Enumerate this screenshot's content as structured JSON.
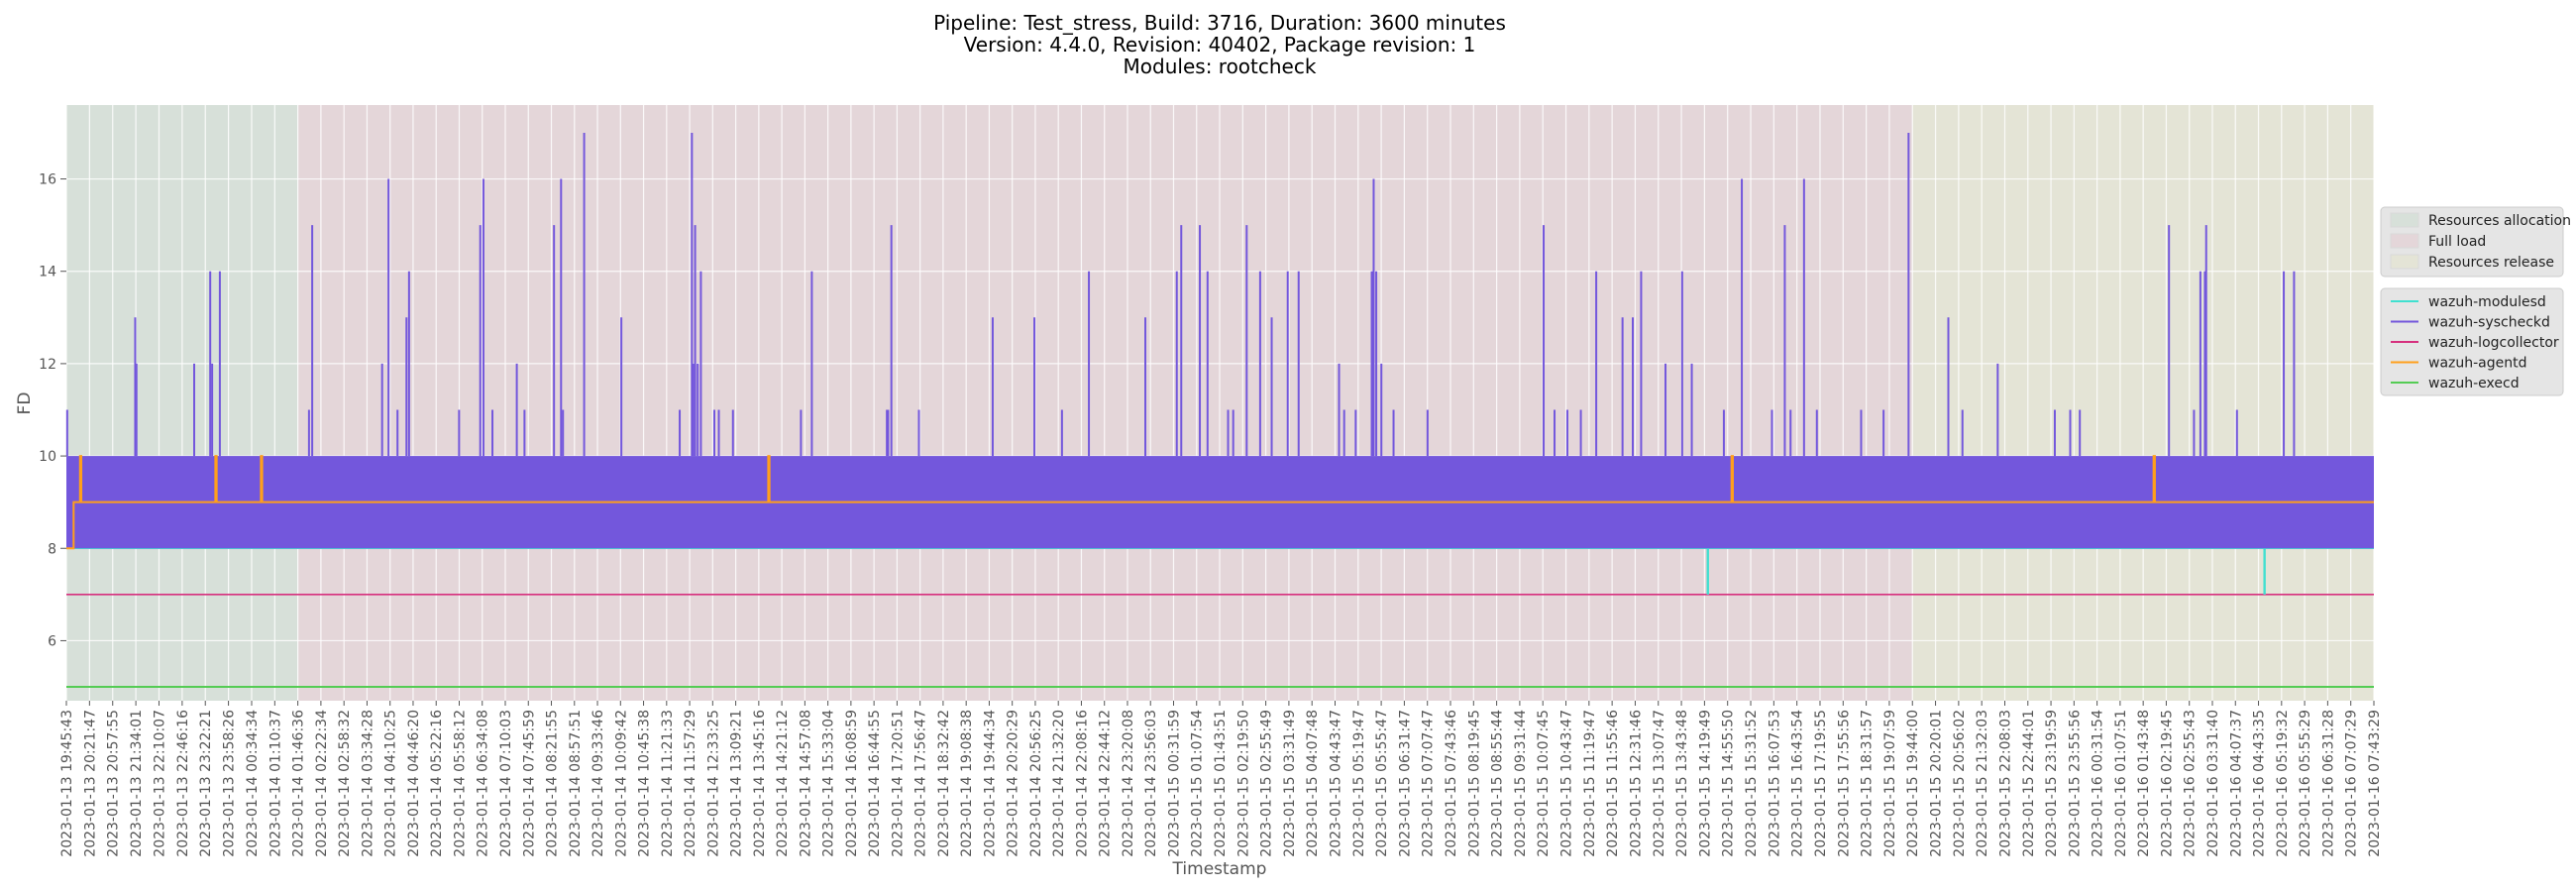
{
  "chart_data": {
    "type": "line",
    "title_lines": [
      "Pipeline: Test_stress, Build: 3716, Duration: 3600 minutes",
      "Version: 4.4.0, Revision: 40402, Package revision: 1",
      "Modules: rootcheck"
    ],
    "xlabel": "Timestamp",
    "ylabel": "FD",
    "ylim": [
      4.7,
      17.6
    ],
    "yticks": [
      6,
      8,
      10,
      12,
      14,
      16
    ],
    "grid": true,
    "legend_position": "right",
    "x_start": "2023-01-13 19:45:43",
    "x_end": "2023-01-16 07:43:29",
    "x_tick_labels": [
      "2023-01-13 19:45:43",
      "2023-01-13 20:21:47",
      "2023-01-13 20:57:55",
      "2023-01-13 21:34:01",
      "2023-01-13 22:10:07",
      "2023-01-13 22:46:16",
      "2023-01-13 23:22:21",
      "2023-01-13 23:58:26",
      "2023-01-14 00:34:34",
      "2023-01-14 01:10:37",
      "2023-01-14 01:46:36",
      "2023-01-14 02:22:34",
      "2023-01-14 02:58:32",
      "2023-01-14 03:34:28",
      "2023-01-14 04:10:25",
      "2023-01-14 04:46:20",
      "2023-01-14 05:22:16",
      "2023-01-14 05:58:12",
      "2023-01-14 06:34:08",
      "2023-01-14 07:10:03",
      "2023-01-14 07:45:59",
      "2023-01-14 08:21:55",
      "2023-01-14 08:57:51",
      "2023-01-14 09:33:46",
      "2023-01-14 10:09:42",
      "2023-01-14 10:45:38",
      "2023-01-14 11:21:33",
      "2023-01-14 11:57:29",
      "2023-01-14 12:33:25",
      "2023-01-14 13:09:21",
      "2023-01-14 13:45:16",
      "2023-01-14 14:21:12",
      "2023-01-14 14:57:08",
      "2023-01-14 15:33:04",
      "2023-01-14 16:08:59",
      "2023-01-14 16:44:55",
      "2023-01-14 17:20:51",
      "2023-01-14 17:56:47",
      "2023-01-14 18:32:42",
      "2023-01-14 19:08:38",
      "2023-01-14 19:44:34",
      "2023-01-14 20:20:29",
      "2023-01-14 20:56:25",
      "2023-01-14 21:32:20",
      "2023-01-14 22:08:16",
      "2023-01-14 22:44:12",
      "2023-01-14 23:20:08",
      "2023-01-14 23:56:03",
      "2023-01-15 00:31:59",
      "2023-01-15 01:07:54",
      "2023-01-15 01:43:51",
      "2023-01-15 02:19:50",
      "2023-01-15 02:55:49",
      "2023-01-15 03:31:49",
      "2023-01-15 04:07:48",
      "2023-01-15 04:43:47",
      "2023-01-15 05:19:47",
      "2023-01-15 05:55:47",
      "2023-01-15 06:31:47",
      "2023-01-15 07:07:47",
      "2023-01-15 07:43:46",
      "2023-01-15 08:19:45",
      "2023-01-15 08:55:44",
      "2023-01-15 09:31:44",
      "2023-01-15 10:07:45",
      "2023-01-15 10:43:47",
      "2023-01-15 11:19:47",
      "2023-01-15 11:55:46",
      "2023-01-15 12:31:46",
      "2023-01-15 13:07:47",
      "2023-01-15 13:43:48",
      "2023-01-15 14:19:49",
      "2023-01-15 14:55:50",
      "2023-01-15 15:31:52",
      "2023-01-15 16:07:53",
      "2023-01-15 16:43:54",
      "2023-01-15 17:19:55",
      "2023-01-15 17:55:56",
      "2023-01-15 18:31:57",
      "2023-01-15 19:07:59",
      "2023-01-15 19:44:00",
      "2023-01-15 20:20:01",
      "2023-01-15 20:56:02",
      "2023-01-15 21:32:03",
      "2023-01-15 22:08:03",
      "2023-01-15 22:44:01",
      "2023-01-15 23:19:59",
      "2023-01-15 23:55:56",
      "2023-01-16 00:31:54",
      "2023-01-16 01:07:51",
      "2023-01-16 01:43:48",
      "2023-01-16 02:19:45",
      "2023-01-16 02:55:43",
      "2023-01-16 03:31:40",
      "2023-01-16 04:07:37",
      "2023-01-16 04:43:35",
      "2023-01-16 05:19:32",
      "2023-01-16 05:55:29",
      "2023-01-16 06:31:28",
      "2023-01-16 07:07:29",
      "2023-01-16 07:43:29"
    ],
    "phases": [
      {
        "name": "Resources allocation",
        "start": "2023-01-13 19:45:43",
        "end": "2023-01-14 01:46:36",
        "color": "#d7e0d9"
      },
      {
        "name": "Full load",
        "start": "2023-01-14 01:46:36",
        "end": "2023-01-15 19:44:00",
        "color": "#e4d6d9"
      },
      {
        "name": "Resources release",
        "start": "2023-01-15 19:44:00",
        "end": "2023-01-16 07:43:29",
        "color": "#e4e4d6"
      }
    ],
    "series": [
      {
        "name": "wazuh-modulesd",
        "color": "#40e0d0",
        "baseline": 8,
        "dips": [
          {
            "at": "2023-01-15 14:25:00",
            "value": 7
          },
          {
            "at": "2023-01-16 04:53:00",
            "value": 7
          }
        ]
      },
      {
        "name": "wazuh-syscheckd",
        "color": "#7357dc",
        "band": [
          8,
          10
        ],
        "spikes": [
          {
            "at": "2023-01-13 19:47:00",
            "value": 11
          },
          {
            "at": "2023-01-13 21:33:00",
            "value": 13
          },
          {
            "at": "2023-01-13 21:35:00",
            "value": 12
          },
          {
            "at": "2023-01-13 23:05:00",
            "value": 12
          },
          {
            "at": "2023-01-13 23:30:00",
            "value": 14
          },
          {
            "at": "2023-01-13 23:33:00",
            "value": 12
          },
          {
            "at": "2023-01-13 23:45:00",
            "value": 14
          },
          {
            "at": "2023-01-14 02:04:00",
            "value": 11
          },
          {
            "at": "2023-01-14 02:09:00",
            "value": 15
          },
          {
            "at": "2023-01-14 03:58:00",
            "value": 12
          },
          {
            "at": "2023-01-14 04:08:00",
            "value": 16
          },
          {
            "at": "2023-01-14 04:22:00",
            "value": 11
          },
          {
            "at": "2023-01-14 04:36:00",
            "value": 13
          },
          {
            "at": "2023-01-14 04:40:00",
            "value": 14
          },
          {
            "at": "2023-01-14 05:58:00",
            "value": 11
          },
          {
            "at": "2023-01-14 06:31:00",
            "value": 15
          },
          {
            "at": "2023-01-14 06:36:00",
            "value": 16
          },
          {
            "at": "2023-01-14 06:50:00",
            "value": 11
          },
          {
            "at": "2023-01-14 07:28:00",
            "value": 12
          },
          {
            "at": "2023-01-14 07:40:00",
            "value": 11
          },
          {
            "at": "2023-01-14 08:26:00",
            "value": 15
          },
          {
            "at": "2023-01-14 08:37:00",
            "value": 16
          },
          {
            "at": "2023-01-14 08:40:00",
            "value": 11
          },
          {
            "at": "2023-01-14 09:13:00",
            "value": 17
          },
          {
            "at": "2023-01-14 10:11:00",
            "value": 13
          },
          {
            "at": "2023-01-14 11:42:00",
            "value": 11
          },
          {
            "at": "2023-01-14 12:01:00",
            "value": 17
          },
          {
            "at": "2023-01-14 12:03:00",
            "value": 12
          },
          {
            "at": "2023-01-14 12:06:00",
            "value": 15
          },
          {
            "at": "2023-01-14 12:10:00",
            "value": 12
          },
          {
            "at": "2023-01-14 12:15:00",
            "value": 14
          },
          {
            "at": "2023-01-14 12:36:00",
            "value": 11
          },
          {
            "at": "2023-01-14 12:43:00",
            "value": 11
          },
          {
            "at": "2023-01-14 13:05:00",
            "value": 11
          },
          {
            "at": "2023-01-14 14:51:00",
            "value": 11
          },
          {
            "at": "2023-01-14 15:08:00",
            "value": 14
          },
          {
            "at": "2023-01-14 17:05:00",
            "value": 11
          },
          {
            "at": "2023-01-14 17:07:00",
            "value": 11
          },
          {
            "at": "2023-01-14 17:12:00",
            "value": 15
          },
          {
            "at": "2023-01-14 17:55:00",
            "value": 11
          },
          {
            "at": "2023-01-14 19:50:00",
            "value": 13
          },
          {
            "at": "2023-01-14 20:55:00",
            "value": 13
          },
          {
            "at": "2023-01-14 21:38:00",
            "value": 11
          },
          {
            "at": "2023-01-14 22:20:00",
            "value": 14
          },
          {
            "at": "2023-01-14 23:48:00",
            "value": 13
          },
          {
            "at": "2023-01-15 00:37:00",
            "value": 14
          },
          {
            "at": "2023-01-15 00:44:00",
            "value": 15
          },
          {
            "at": "2023-01-15 01:13:00",
            "value": 15
          },
          {
            "at": "2023-01-15 01:25:00",
            "value": 14
          },
          {
            "at": "2023-01-15 01:57:00",
            "value": 11
          },
          {
            "at": "2023-01-15 02:05:00",
            "value": 11
          },
          {
            "at": "2023-01-15 02:26:00",
            "value": 15
          },
          {
            "at": "2023-01-15 02:47:00",
            "value": 14
          },
          {
            "at": "2023-01-15 03:05:00",
            "value": 13
          },
          {
            "at": "2023-01-15 03:30:00",
            "value": 14
          },
          {
            "at": "2023-01-15 03:47:00",
            "value": 14
          },
          {
            "at": "2023-01-15 04:50:00",
            "value": 12
          },
          {
            "at": "2023-01-15 04:58:00",
            "value": 11
          },
          {
            "at": "2023-01-15 05:16:00",
            "value": 11
          },
          {
            "at": "2023-01-15 05:41:00",
            "value": 14
          },
          {
            "at": "2023-01-15 05:44:00",
            "value": 16
          },
          {
            "at": "2023-01-15 05:48:00",
            "value": 14
          },
          {
            "at": "2023-01-15 05:56:00",
            "value": 12
          },
          {
            "at": "2023-01-15 06:15:00",
            "value": 11
          },
          {
            "at": "2023-01-15 07:08:00",
            "value": 11
          },
          {
            "at": "2023-01-15 10:09:00",
            "value": 15
          },
          {
            "at": "2023-01-15 10:26:00",
            "value": 11
          },
          {
            "at": "2023-01-15 10:46:00",
            "value": 11
          },
          {
            "at": "2023-01-15 11:07:00",
            "value": 11
          },
          {
            "at": "2023-01-15 11:31:00",
            "value": 14
          },
          {
            "at": "2023-01-15 12:12:00",
            "value": 13
          },
          {
            "at": "2023-01-15 12:28:00",
            "value": 13
          },
          {
            "at": "2023-01-15 12:41:00",
            "value": 14
          },
          {
            "at": "2023-01-15 13:19:00",
            "value": 12
          },
          {
            "at": "2023-01-15 13:45:00",
            "value": 14
          },
          {
            "at": "2023-01-15 14:00:00",
            "value": 12
          },
          {
            "at": "2023-01-15 14:50:00",
            "value": 11
          },
          {
            "at": "2023-01-15 15:18:00",
            "value": 16
          },
          {
            "at": "2023-01-15 16:05:00",
            "value": 11
          },
          {
            "at": "2023-01-15 16:25:00",
            "value": 15
          },
          {
            "at": "2023-01-15 16:34:00",
            "value": 11
          },
          {
            "at": "2023-01-15 16:55:00",
            "value": 16
          },
          {
            "at": "2023-01-15 17:15:00",
            "value": 11
          },
          {
            "at": "2023-01-15 18:24:00",
            "value": 11
          },
          {
            "at": "2023-01-15 18:59:00",
            "value": 11
          },
          {
            "at": "2023-01-15 19:38:00",
            "value": 17
          },
          {
            "at": "2023-01-15 20:40:00",
            "value": 13
          },
          {
            "at": "2023-01-15 21:02:00",
            "value": 11
          },
          {
            "at": "2023-01-15 21:57:00",
            "value": 12
          },
          {
            "at": "2023-01-15 23:26:00",
            "value": 11
          },
          {
            "at": "2023-01-15 23:50:00",
            "value": 11
          },
          {
            "at": "2023-01-16 00:05:00",
            "value": 11
          },
          {
            "at": "2023-01-16 02:24:00",
            "value": 15
          },
          {
            "at": "2023-01-16 03:03:00",
            "value": 11
          },
          {
            "at": "2023-01-16 03:13:00",
            "value": 14
          },
          {
            "at": "2023-01-16 03:20:00",
            "value": 14
          },
          {
            "at": "2023-01-16 03:22:00",
            "value": 15
          },
          {
            "at": "2023-01-16 04:10:00",
            "value": 11
          },
          {
            "at": "2023-01-16 05:23:00",
            "value": 14
          },
          {
            "at": "2023-01-16 05:39:00",
            "value": 14
          }
        ]
      },
      {
        "name": "wazuh-logcollector",
        "color": "#d6307e",
        "baseline": 7
      },
      {
        "name": "wazuh-agentd",
        "color": "#ff9f1c",
        "steps": [
          {
            "at": "2023-01-13 19:45:43",
            "value": 8
          },
          {
            "at": "2023-01-13 19:57:00",
            "value": 9
          },
          {
            "at": "2023-01-13 20:07:00",
            "value": 10
          },
          {
            "at": "2023-01-13 20:09:00",
            "value": 9
          },
          {
            "at": "2023-01-13 23:38:00",
            "value": 10
          },
          {
            "at": "2023-01-13 23:40:00",
            "value": 9
          },
          {
            "at": "2023-01-14 00:49:00",
            "value": 10
          },
          {
            "at": "2023-01-14 00:51:00",
            "value": 9
          },
          {
            "at": "2023-01-14 14:00:00",
            "value": 10
          },
          {
            "at": "2023-01-14 14:02:00",
            "value": 9
          },
          {
            "at": "2023-01-15 15:02:00",
            "value": 10
          },
          {
            "at": "2023-01-15 15:04:00",
            "value": 9
          },
          {
            "at": "2023-01-16 02:00:00",
            "value": 10
          },
          {
            "at": "2023-01-16 02:02:00",
            "value": 9
          },
          {
            "at": "2023-01-16 07:43:29",
            "value": 9
          }
        ]
      },
      {
        "name": "wazuh-execd",
        "color": "#54cc54",
        "baseline": 5
      }
    ]
  }
}
